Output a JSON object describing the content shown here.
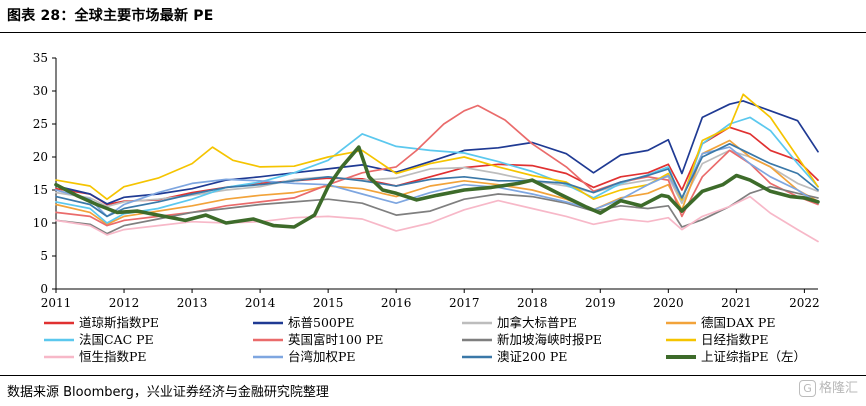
{
  "header": {
    "title": "图表 28：全球主要市场最新 PE"
  },
  "footer": {
    "source": "数据来源 Bloomberg，兴业证券经济与金融研究院整理",
    "watermark": "格隆汇"
  },
  "chart_data": {
    "type": "line",
    "title": "图表 28：全球主要市场最新 PE",
    "xlabel": "",
    "ylabel": "",
    "x_ticks": [
      "2011",
      "2012",
      "2013",
      "2014",
      "2015",
      "2016",
      "2017",
      "2018",
      "2019",
      "2020",
      "2021",
      "2022"
    ],
    "x_range": [
      2011.0,
      2022.2
    ],
    "y_ticks": [
      0,
      5,
      10,
      15,
      20,
      25,
      30,
      35
    ],
    "ylim": [
      0,
      35
    ],
    "grid": false,
    "legend_position": "bottom",
    "series": [
      {
        "name": "道琼斯指数PE",
        "color": "#e03131",
        "x": [
          2011.0,
          2011.5,
          2011.75,
          2012.0,
          2012.5,
          2013.0,
          2013.5,
          2014.0,
          2014.5,
          2015.0,
          2015.5,
          2016.0,
          2016.5,
          2017.0,
          2017.5,
          2018.0,
          2018.5,
          2018.9,
          2019.3,
          2019.7,
          2020.0,
          2020.2,
          2020.5,
          2020.9,
          2021.2,
          2021.5,
          2021.9,
          2022.2
        ],
        "y": [
          15.2,
          14.4,
          12.8,
          13.3,
          13.5,
          14.6,
          15.4,
          16.0,
          16.4,
          16.8,
          16.7,
          15.6,
          17.0,
          18.4,
          18.9,
          18.7,
          17.5,
          15.4,
          17.0,
          17.6,
          18.9,
          15.0,
          22.0,
          24.5,
          23.5,
          21.0,
          19.5,
          16.5
        ]
      },
      {
        "name": "标普500PE",
        "color": "#1f3a93",
        "x": [
          2011.0,
          2011.5,
          2011.75,
          2012.0,
          2012.5,
          2013.0,
          2013.5,
          2014.0,
          2014.5,
          2015.0,
          2015.5,
          2016.0,
          2016.5,
          2017.0,
          2017.5,
          2018.0,
          2018.5,
          2018.9,
          2019.3,
          2019.7,
          2020.0,
          2020.2,
          2020.5,
          2020.9,
          2021.1,
          2021.5,
          2021.9,
          2022.2
        ],
        "y": [
          15.6,
          14.4,
          12.9,
          13.9,
          14.4,
          15.2,
          16.5,
          17.0,
          17.6,
          18.2,
          18.8,
          17.7,
          19.3,
          21.0,
          21.4,
          22.2,
          20.5,
          17.6,
          20.3,
          21.0,
          22.6,
          17.5,
          26.0,
          28.0,
          28.5,
          27.0,
          25.5,
          20.8
        ]
      },
      {
        "name": "加拿大标普PE",
        "color": "#bdbdbd",
        "x": [
          2011.0,
          2011.5,
          2011.75,
          2012.0,
          2012.5,
          2013.0,
          2013.5,
          2014.0,
          2014.5,
          2015.0,
          2015.5,
          2016.0,
          2016.5,
          2017.0,
          2017.5,
          2018.0,
          2018.5,
          2018.9,
          2019.3,
          2019.7,
          2020.0,
          2020.2,
          2020.5,
          2020.9,
          2021.2,
          2021.5,
          2021.9,
          2022.2
        ],
        "y": [
          14.6,
          13.8,
          12.5,
          13.2,
          13.6,
          14.2,
          15.0,
          15.5,
          16.6,
          17.0,
          16.5,
          16.8,
          18.2,
          18.4,
          17.5,
          16.4,
          15.6,
          14.6,
          15.8,
          16.5,
          17.0,
          13.0,
          19.0,
          21.0,
          20.0,
          18.5,
          16.0,
          14.8
        ]
      },
      {
        "name": "德国DAX PE",
        "color": "#f2a33a",
        "x": [
          2011.0,
          2011.5,
          2011.75,
          2012.0,
          2012.5,
          2013.0,
          2013.5,
          2014.0,
          2014.5,
          2015.0,
          2015.5,
          2016.0,
          2016.5,
          2017.0,
          2017.5,
          2018.0,
          2018.5,
          2018.9,
          2019.3,
          2019.7,
          2020.0,
          2020.2,
          2020.5,
          2020.9,
          2021.2,
          2021.5,
          2021.9,
          2022.2
        ],
        "y": [
          12.8,
          11.6,
          9.8,
          11.0,
          11.8,
          12.6,
          13.6,
          14.2,
          14.6,
          15.6,
          15.2,
          14.0,
          15.6,
          16.4,
          15.8,
          15.0,
          13.6,
          12.0,
          13.8,
          14.5,
          15.8,
          12.0,
          20.5,
          22.5,
          20.0,
          18.5,
          15.0,
          13.3
        ]
      },
      {
        "name": "法国CAC PE",
        "color": "#5bc8ee",
        "x": [
          2011.0,
          2011.5,
          2011.75,
          2012.0,
          2012.5,
          2013.0,
          2013.5,
          2014.0,
          2014.5,
          2015.0,
          2015.5,
          2016.0,
          2016.5,
          2017.0,
          2017.5,
          2018.0,
          2018.5,
          2018.9,
          2019.3,
          2019.7,
          2020.0,
          2020.2,
          2020.5,
          2020.9,
          2021.2,
          2021.5,
          2021.9,
          2022.2
        ],
        "y": [
          13.2,
          12.2,
          10.0,
          11.4,
          12.2,
          13.6,
          15.4,
          16.2,
          17.6,
          19.5,
          23.5,
          21.6,
          21.0,
          20.6,
          19.3,
          17.8,
          15.8,
          13.8,
          16.0,
          17.3,
          18.5,
          13.5,
          22.0,
          25.0,
          26.0,
          24.0,
          19.0,
          15.5
        ]
      },
      {
        "name": "英国富时100 PE",
        "color": "#ea6b6b",
        "x": [
          2011.0,
          2011.5,
          2011.75,
          2012.0,
          2012.5,
          2013.0,
          2013.5,
          2014.0,
          2014.5,
          2015.0,
          2015.5,
          2016.0,
          2016.3,
          2016.7,
          2017.0,
          2017.2,
          2017.6,
          2018.0,
          2018.5,
          2018.9,
          2019.3,
          2019.7,
          2020.0,
          2020.2,
          2020.5,
          2020.9,
          2021.2,
          2021.5,
          2021.9,
          2022.2
        ],
        "y": [
          11.6,
          11.0,
          9.6,
          10.4,
          11.0,
          11.6,
          12.6,
          13.2,
          13.8,
          15.8,
          17.6,
          18.5,
          21.0,
          25.0,
          27.0,
          27.8,
          25.6,
          22.0,
          18.5,
          14.8,
          16.2,
          17.0,
          16.5,
          11.0,
          17.0,
          21.0,
          19.0,
          16.0,
          14.0,
          12.8
        ]
      },
      {
        "name": "新加坡海峡时报PE",
        "color": "#7f7f7f",
        "x": [
          2011.0,
          2011.5,
          2011.75,
          2012.0,
          2012.5,
          2013.0,
          2013.5,
          2014.0,
          2014.5,
          2015.0,
          2015.5,
          2016.0,
          2016.5,
          2017.0,
          2017.5,
          2018.0,
          2018.5,
          2018.9,
          2019.3,
          2019.7,
          2020.0,
          2020.2,
          2020.5,
          2020.9,
          2021.2,
          2021.5,
          2021.9,
          2022.2
        ],
        "y": [
          10.4,
          9.8,
          8.4,
          9.6,
          10.6,
          11.6,
          12.2,
          12.8,
          13.2,
          13.6,
          13.0,
          11.2,
          11.8,
          13.6,
          14.4,
          14.0,
          13.0,
          11.8,
          12.6,
          12.2,
          12.6,
          9.4,
          10.5,
          12.5,
          14.5,
          15.5,
          14.5,
          13.8
        ]
      },
      {
        "name": "日经指数PE",
        "color": "#f5c400",
        "x": [
          2011.0,
          2011.5,
          2011.75,
          2012.0,
          2012.5,
          2013.0,
          2013.3,
          2013.6,
          2014.0,
          2014.5,
          2015.0,
          2015.5,
          2016.0,
          2016.5,
          2017.0,
          2017.5,
          2018.0,
          2018.5,
          2018.9,
          2019.3,
          2019.7,
          2020.0,
          2020.2,
          2020.5,
          2020.9,
          2021.1,
          2021.5,
          2021.9,
          2022.2
        ],
        "y": [
          16.5,
          15.6,
          13.6,
          15.5,
          16.8,
          19.0,
          21.5,
          19.5,
          18.5,
          18.6,
          20.0,
          21.0,
          17.5,
          19.0,
          20.0,
          18.5,
          17.2,
          16.2,
          13.6,
          15.0,
          15.8,
          17.5,
          13.5,
          22.5,
          24.5,
          29.5,
          26.0,
          20.0,
          15.5
        ]
      },
      {
        "name": "恒生指数PE",
        "color": "#f7b8c8",
        "x": [
          2011.0,
          2011.5,
          2011.75,
          2012.0,
          2012.5,
          2013.0,
          2013.5,
          2014.0,
          2014.5,
          2015.0,
          2015.5,
          2016.0,
          2016.5,
          2017.0,
          2017.5,
          2018.0,
          2018.5,
          2018.9,
          2019.3,
          2019.7,
          2020.0,
          2020.2,
          2020.5,
          2020.9,
          2021.2,
          2021.5,
          2021.9,
          2022.2
        ],
        "y": [
          10.4,
          9.6,
          8.2,
          9.0,
          9.6,
          10.2,
          10.0,
          10.2,
          10.8,
          11.0,
          10.6,
          8.8,
          10.0,
          12.0,
          13.4,
          12.2,
          11.0,
          9.8,
          10.6,
          10.2,
          10.8,
          9.0,
          11.0,
          12.5,
          14.0,
          11.5,
          9.0,
          7.2
        ]
      },
      {
        "name": "台湾加权PE",
        "color": "#7ea6e0",
        "x": [
          2011.0,
          2011.5,
          2011.75,
          2012.0,
          2012.5,
          2013.0,
          2013.5,
          2014.0,
          2014.5,
          2015.0,
          2015.5,
          2016.0,
          2016.5,
          2017.0,
          2017.5,
          2018.0,
          2018.5,
          2018.9,
          2019.3,
          2019.7,
          2020.0,
          2020.2,
          2020.5,
          2020.9,
          2021.2,
          2021.5,
          2021.9,
          2022.2
        ],
        "y": [
          15.0,
          13.6,
          11.0,
          12.8,
          14.6,
          16.0,
          16.6,
          16.4,
          16.0,
          15.8,
          14.4,
          13.0,
          14.6,
          15.8,
          15.4,
          14.4,
          13.2,
          12.0,
          13.6,
          15.8,
          17.2,
          13.8,
          20.5,
          21.5,
          19.0,
          17.0,
          15.0,
          13.0
        ]
      },
      {
        "name": "澳证200 PE",
        "color": "#3a78a8",
        "x": [
          2011.0,
          2011.5,
          2011.75,
          2012.0,
          2012.5,
          2013.0,
          2013.5,
          2014.0,
          2014.5,
          2015.0,
          2015.5,
          2016.0,
          2016.5,
          2017.0,
          2017.5,
          2018.0,
          2018.5,
          2018.9,
          2019.3,
          2019.7,
          2020.0,
          2020.2,
          2020.5,
          2020.9,
          2021.2,
          2021.5,
          2021.9,
          2022.2
        ],
        "y": [
          14.0,
          12.8,
          11.0,
          12.2,
          13.2,
          14.4,
          15.4,
          15.8,
          16.4,
          17.0,
          16.4,
          15.6,
          16.6,
          17.0,
          16.4,
          16.4,
          16.0,
          14.6,
          16.2,
          17.2,
          18.2,
          13.8,
          20.0,
          22.0,
          20.5,
          19.0,
          17.5,
          15.0
        ]
      },
      {
        "name": "上证综指PE（左）",
        "color": "#3d6b2a",
        "bold": true,
        "x": [
          2011.0,
          2011.3,
          2011.6,
          2011.9,
          2012.2,
          2012.5,
          2012.9,
          2013.2,
          2013.5,
          2013.9,
          2014.2,
          2014.5,
          2014.8,
          2015.0,
          2015.2,
          2015.45,
          2015.6,
          2015.8,
          2016.0,
          2016.3,
          2016.6,
          2017.0,
          2017.4,
          2017.8,
          2018.0,
          2018.4,
          2018.8,
          2019.0,
          2019.3,
          2019.6,
          2019.9,
          2020.0,
          2020.2,
          2020.5,
          2020.8,
          2021.0,
          2021.2,
          2021.5,
          2021.8,
          2022.0,
          2022.2
        ],
        "y": [
          15.8,
          14.2,
          12.8,
          11.6,
          11.8,
          11.2,
          10.4,
          11.2,
          10.0,
          10.6,
          9.6,
          9.4,
          11.2,
          15.5,
          18.5,
          21.5,
          17.0,
          15.0,
          14.5,
          13.5,
          14.2,
          15.0,
          15.4,
          16.0,
          16.5,
          14.4,
          12.4,
          11.5,
          13.4,
          12.6,
          14.2,
          14.0,
          11.8,
          14.8,
          15.8,
          17.2,
          16.5,
          14.8,
          14.0,
          13.8,
          13.2
        ]
      }
    ]
  }
}
